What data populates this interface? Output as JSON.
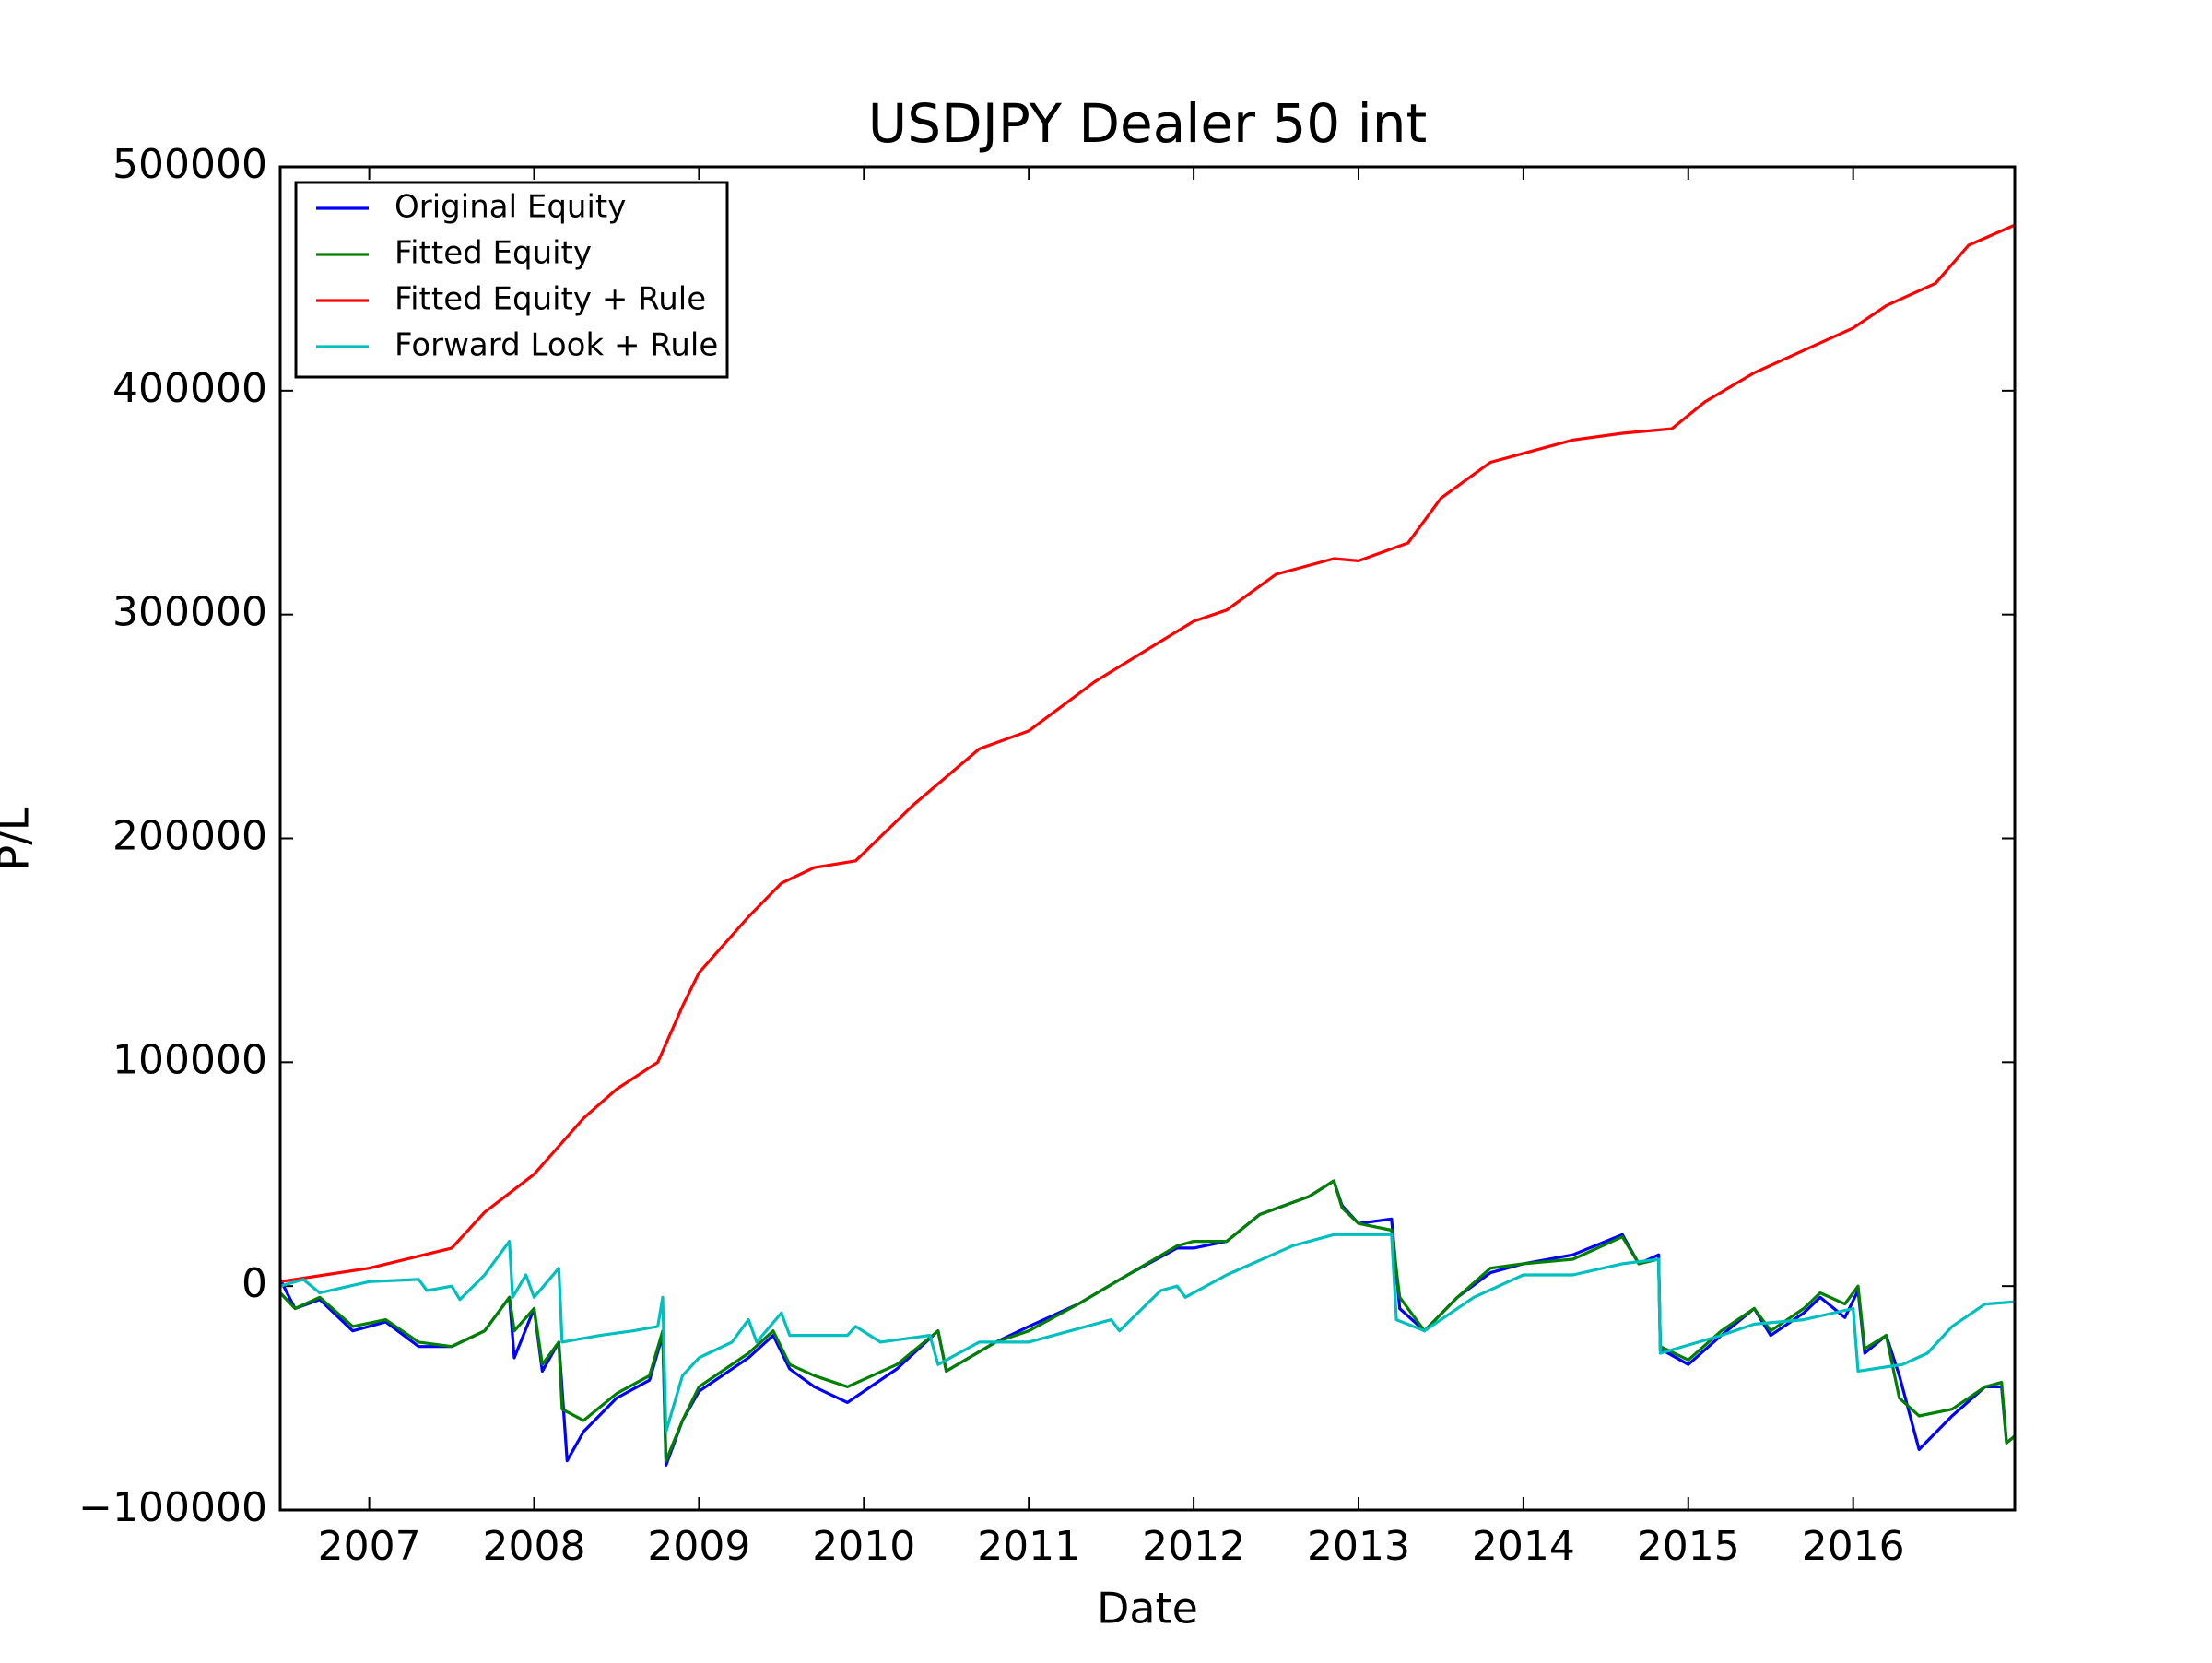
{
  "chart_data": {
    "type": "line",
    "title": "USDJPY Dealer 50 int",
    "x_label": "Date",
    "y_label": "P/L",
    "xlim": [
      2006.46,
      2016.98
    ],
    "xticks": [
      2007,
      2008,
      2009,
      2010,
      2011,
      2012,
      2013,
      2014,
      2015,
      2016
    ],
    "ylim": [
      -100000,
      500000
    ],
    "yticks": [
      {
        "value": -100000,
        "label": "−100000"
      },
      0,
      100000,
      200000,
      300000,
      400000,
      500000
    ],
    "grid": false,
    "legend": "upper left",
    "series": [
      {
        "name": "Original Equity",
        "color": "#0000ff",
        "x": [
          2006.46,
          2006.55,
          2006.7,
          2006.9,
          2007.1,
          2007.3,
          2007.5,
          2007.7,
          2007.85,
          2007.88,
          2008.0,
          2008.05,
          2008.15,
          2008.2,
          2008.3,
          2008.5,
          2008.7,
          2008.78,
          2008.8,
          2008.9,
          2009.0,
          2009.3,
          2009.45,
          2009.55,
          2009.7,
          2009.9,
          2010.2,
          2010.45,
          2010.5,
          2010.8,
          2011.0,
          2011.3,
          2011.6,
          2011.9,
          2012.0,
          2012.2,
          2012.4,
          2012.7,
          2012.85,
          2012.9,
          2013.0,
          2013.2,
          2013.25,
          2013.4,
          2013.6,
          2013.8,
          2014.0,
          2014.3,
          2014.6,
          2014.7,
          2014.82,
          2014.83,
          2015.0,
          2015.2,
          2015.4,
          2015.5,
          2015.7,
          2015.8,
          2015.95,
          2016.03,
          2016.07,
          2016.2,
          2016.28,
          2016.4,
          2016.6,
          2016.8,
          2016.9,
          2016.93,
          2016.98
        ],
        "values": [
          3000,
          -10000,
          -6000,
          -20000,
          -16000,
          -27000,
          -27000,
          -20000,
          -5000,
          -32000,
          -10000,
          -38000,
          -25000,
          -78000,
          -65000,
          -50000,
          -42000,
          -22000,
          -80000,
          -60000,
          -47000,
          -32000,
          -22000,
          -37000,
          -45000,
          -52000,
          -37000,
          -20000,
          -38000,
          -25000,
          -18000,
          -8000,
          5000,
          17000,
          17000,
          20000,
          32000,
          40000,
          47000,
          36000,
          28000,
          30000,
          -10000,
          -20000,
          -5000,
          6000,
          10000,
          14000,
          23000,
          10000,
          14000,
          -28000,
          -35000,
          -22000,
          -10000,
          -22000,
          -12000,
          -5000,
          -14000,
          -2000,
          -30000,
          -22000,
          -40000,
          -73000,
          -58000,
          -45000,
          -45000,
          -70000,
          -67000
        ]
      },
      {
        "name": "Fitted Equity",
        "color": "#008000",
        "x": [
          2006.46,
          2006.55,
          2006.7,
          2006.9,
          2007.1,
          2007.3,
          2007.5,
          2007.7,
          2007.85,
          2007.88,
          2008.0,
          2008.05,
          2008.15,
          2008.17,
          2008.3,
          2008.5,
          2008.7,
          2008.78,
          2008.8,
          2008.9,
          2009.0,
          2009.3,
          2009.45,
          2009.55,
          2009.7,
          2009.9,
          2010.2,
          2010.45,
          2010.5,
          2010.8,
          2011.0,
          2011.3,
          2011.6,
          2011.9,
          2012.0,
          2012.2,
          2012.4,
          2012.7,
          2012.85,
          2012.9,
          2013.0,
          2013.2,
          2013.25,
          2013.4,
          2013.6,
          2013.8,
          2014.0,
          2014.3,
          2014.6,
          2014.7,
          2014.82,
          2014.83,
          2015.0,
          2015.2,
          2015.4,
          2015.5,
          2015.7,
          2015.8,
          2015.95,
          2016.03,
          2016.07,
          2016.2,
          2016.28,
          2016.4,
          2016.6,
          2016.8,
          2016.9,
          2016.93,
          2016.98
        ],
        "values": [
          -3000,
          -10000,
          -5000,
          -18000,
          -15000,
          -25000,
          -27000,
          -20000,
          -5000,
          -20000,
          -10000,
          -35000,
          -25000,
          -55000,
          -60000,
          -48000,
          -40000,
          -20000,
          -78000,
          -60000,
          -45000,
          -30000,
          -20000,
          -35000,
          -40000,
          -45000,
          -35000,
          -20000,
          -38000,
          -25000,
          -20000,
          -8000,
          5000,
          18000,
          20000,
          20000,
          32000,
          40000,
          47000,
          35000,
          28000,
          25000,
          -5000,
          -20000,
          -5000,
          8000,
          10000,
          12000,
          22000,
          10000,
          12000,
          -27000,
          -33000,
          -20000,
          -10000,
          -20000,
          -10000,
          -3000,
          -8000,
          0,
          -28000,
          -22000,
          -50000,
          -58000,
          -55000,
          -45000,
          -43000,
          -70000,
          -67000
        ]
      },
      {
        "name": "Fitted Equity + Rule",
        "color": "#ff0000",
        "x": [
          2006.46,
          2007.0,
          2007.5,
          2007.7,
          2008.0,
          2008.3,
          2008.5,
          2008.75,
          2008.9,
          2009.0,
          2009.3,
          2009.5,
          2009.7,
          2009.95,
          2010.3,
          2010.7,
          2011.0,
          2011.4,
          2011.8,
          2012.0,
          2012.2,
          2012.5,
          2012.85,
          2013.0,
          2013.3,
          2013.5,
          2013.8,
          2014.0,
          2014.3,
          2014.6,
          2014.9,
          2015.1,
          2015.4,
          2015.7,
          2016.0,
          2016.2,
          2016.5,
          2016.7,
          2016.98
        ],
        "values": [
          2000,
          8000,
          17000,
          33000,
          50000,
          75000,
          88000,
          100000,
          125000,
          140000,
          165000,
          180000,
          187000,
          190000,
          215000,
          240000,
          248000,
          270000,
          288000,
          297000,
          302000,
          318000,
          325000,
          324000,
          332000,
          352000,
          368000,
          372000,
          378000,
          381000,
          383000,
          395000,
          408000,
          418000,
          428000,
          438000,
          448000,
          465000,
          474000
        ]
      },
      {
        "name": "Forward Look + Rule",
        "color": "#00bfbf",
        "x": [
          2006.46,
          2006.6,
          2006.7,
          2007.0,
          2007.3,
          2007.35,
          2007.5,
          2007.55,
          2007.7,
          2007.8,
          2007.85,
          2007.87,
          2007.95,
          2008.0,
          2008.15,
          2008.17,
          2008.4,
          2008.6,
          2008.75,
          2008.78,
          2008.8,
          2008.9,
          2009.0,
          2009.2,
          2009.3,
          2009.35,
          2009.5,
          2009.55,
          2009.9,
          2009.95,
          2010.1,
          2010.4,
          2010.45,
          2010.7,
          2011.0,
          2011.5,
          2011.55,
          2011.8,
          2011.9,
          2011.95,
          2012.2,
          2012.6,
          2012.85,
          2013.2,
          2013.23,
          2013.4,
          2013.7,
          2014.0,
          2014.3,
          2014.6,
          2014.82,
          2014.83,
          2015.2,
          2015.4,
          2015.7,
          2016.0,
          2016.03,
          2016.3,
          2016.45,
          2016.6,
          2016.8,
          2016.98
        ],
        "values": [
          0,
          3000,
          -3000,
          2000,
          3000,
          -2000,
          0,
          -6000,
          5000,
          15000,
          20000,
          -5000,
          5000,
          -5000,
          8000,
          -25000,
          -22000,
          -20000,
          -18000,
          -5000,
          -65000,
          -40000,
          -32000,
          -25000,
          -15000,
          -25000,
          -12000,
          -22000,
          -22000,
          -18000,
          -25000,
          -22000,
          -35000,
          -25000,
          -25000,
          -15000,
          -20000,
          -2000,
          0,
          -5000,
          5000,
          18000,
          23000,
          23000,
          -15000,
          -20000,
          -5000,
          5000,
          5000,
          10000,
          12000,
          -30000,
          -22000,
          -17000,
          -15000,
          -10000,
          -38000,
          -35000,
          -30000,
          -18000,
          -8000,
          -7000
        ]
      }
    ]
  }
}
